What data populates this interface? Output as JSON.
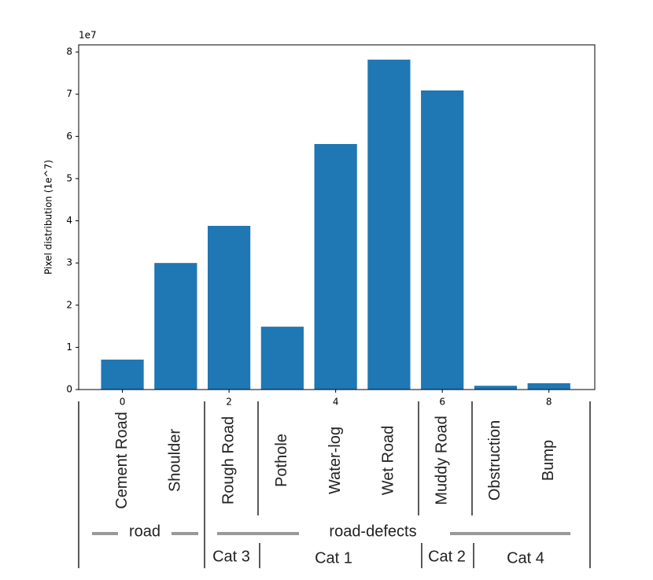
{
  "chart_data": {
    "type": "bar",
    "x": [
      0,
      1,
      2,
      3,
      4,
      5,
      6,
      7,
      8
    ],
    "categories": [
      "Cement Road",
      "Shoulder",
      "Rough Road",
      "Pothole",
      "Water-log",
      "Wet Road",
      "Muddy Road",
      "Obstruction",
      "Bump"
    ],
    "values": [
      0.71,
      3.0,
      3.88,
      1.49,
      5.82,
      7.82,
      7.09,
      0.09,
      0.15
    ],
    "color": "#1f77b4",
    "ylabel": "Pixel distribution (1e^7)",
    "y_offset_label": "1e7",
    "xlim": [
      -0.82,
      8.86
    ],
    "xticks": [
      0,
      2,
      4,
      6,
      8
    ],
    "ylim": [
      0,
      8.17
    ],
    "yticks": [
      0,
      1,
      2,
      3,
      4,
      5,
      6,
      7,
      8
    ],
    "groups": [
      "road",
      "road-defects"
    ],
    "subgroups": [
      "Cat 3",
      "Cat 1",
      "Cat 2",
      "Cat 4"
    ]
  }
}
